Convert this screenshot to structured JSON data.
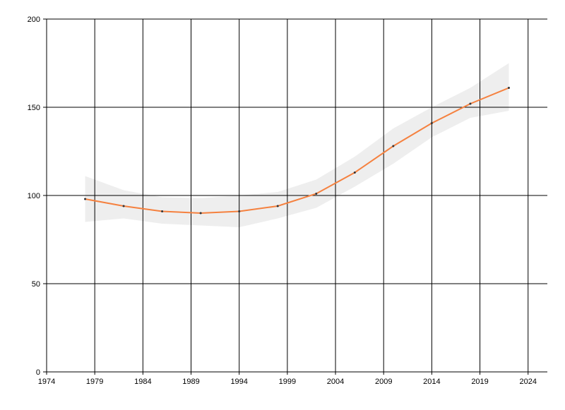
{
  "chart_data": {
    "type": "line",
    "x": [
      1978,
      1982,
      1986,
      1990,
      1994,
      1998,
      2002,
      2006,
      2010,
      2014,
      2018,
      2022
    ],
    "series": [
      {
        "color": "#f5813f",
        "values": [
          98,
          94,
          91,
          90,
          91,
          94,
          101,
          113,
          128,
          141,
          152,
          161
        ]
      }
    ],
    "band": {
      "color": "#eeeeee",
      "upper": [
        111,
        103,
        99,
        98.5,
        100,
        102,
        109,
        122,
        138,
        150,
        161,
        175
      ],
      "lower": [
        85,
        87,
        84,
        83,
        82,
        87,
        93,
        105,
        118,
        133,
        144,
        148
      ]
    },
    "xlim": [
      1974,
      2026
    ],
    "xticks": [
      1974,
      1979,
      1984,
      1989,
      1994,
      1999,
      2004,
      2009,
      2014,
      2019,
      2024
    ],
    "ylim": [
      0,
      200
    ],
    "yticks": [
      0,
      50,
      100,
      150,
      200
    ],
    "grid": true
  }
}
